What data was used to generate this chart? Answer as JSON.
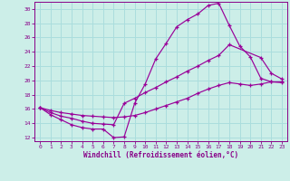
{
  "xlabel": "Windchill (Refroidissement éolien,°C)",
  "background_color": "#cceee8",
  "grid_color": "#aadddd",
  "line_color": "#990099",
  "xlim": [
    -0.5,
    23.5
  ],
  "ylim": [
    11.5,
    31.0
  ],
  "yticks": [
    12,
    14,
    16,
    18,
    20,
    22,
    24,
    26,
    28,
    30
  ],
  "xticks": [
    0,
    1,
    2,
    3,
    4,
    5,
    6,
    7,
    8,
    9,
    10,
    11,
    12,
    13,
    14,
    15,
    16,
    17,
    18,
    19,
    20,
    21,
    22,
    23
  ],
  "line1_x": [
    0,
    1,
    2,
    3,
    4,
    5,
    6,
    7,
    8,
    9,
    10,
    11,
    12,
    13,
    14,
    15,
    16,
    17,
    18,
    19,
    20,
    21,
    22,
    23
  ],
  "line1_y": [
    16.2,
    15.2,
    14.5,
    13.8,
    13.4,
    13.2,
    13.2,
    12.0,
    12.1,
    16.8,
    19.5,
    23.0,
    25.2,
    27.5,
    28.5,
    29.3,
    30.5,
    30.8,
    27.7,
    24.8,
    23.3,
    20.3,
    19.8,
    19.7
  ],
  "line2_x": [
    0,
    1,
    2,
    3,
    4,
    5,
    6,
    7,
    8,
    9,
    10,
    11,
    12,
    13,
    14,
    15,
    16,
    17,
    18,
    21,
    22,
    23
  ],
  "line2_y": [
    16.2,
    15.5,
    15.0,
    14.7,
    14.3,
    14.0,
    13.9,
    13.8,
    16.8,
    17.5,
    18.3,
    19.0,
    19.8,
    20.5,
    21.3,
    22.0,
    22.8,
    23.5,
    25.0,
    23.2,
    21.0,
    20.2
  ],
  "line3_x": [
    0,
    1,
    2,
    3,
    4,
    5,
    6,
    7,
    8,
    9,
    10,
    11,
    12,
    13,
    14,
    15,
    16,
    17,
    18,
    19,
    20,
    21,
    22,
    23
  ],
  "line3_y": [
    16.2,
    15.8,
    15.5,
    15.3,
    15.1,
    15.0,
    14.9,
    14.8,
    14.9,
    15.1,
    15.5,
    16.0,
    16.5,
    17.0,
    17.5,
    18.2,
    18.8,
    19.3,
    19.7,
    19.5,
    19.3,
    19.5,
    19.8,
    19.8
  ]
}
